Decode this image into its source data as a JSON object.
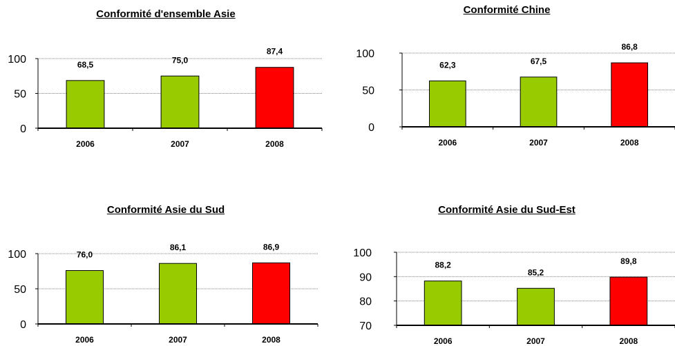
{
  "chart_data": [
    {
      "type": "bar",
      "title": "Conformité d'ensemble Asie",
      "categories": [
        "2006",
        "2007",
        "2008"
      ],
      "values": [
        68.5,
        75.0,
        87.4
      ],
      "value_labels": [
        "68,5",
        "75,0",
        "87,4"
      ],
      "colors": [
        "#99cc00",
        "#99cc00",
        "#ff0000"
      ],
      "ylim": [
        0,
        100
      ],
      "yticks": [
        0,
        50,
        100
      ],
      "grid": true
    },
    {
      "type": "bar",
      "title": "Conformité Chine",
      "categories": [
        "2006",
        "2007",
        "2008"
      ],
      "values": [
        62.3,
        67.5,
        86.8
      ],
      "value_labels": [
        "62,3",
        "67,5",
        "86,8"
      ],
      "colors": [
        "#99cc00",
        "#99cc00",
        "#ff0000"
      ],
      "ylim": [
        0,
        100
      ],
      "yticks": [
        0,
        50,
        100
      ],
      "grid": true
    },
    {
      "type": "bar",
      "title": "Conformité Asie du Sud",
      "categories": [
        "2006",
        "2007",
        "2008"
      ],
      "values": [
        76.0,
        86.1,
        86.9
      ],
      "value_labels": [
        "76,0",
        "86,1",
        "86,9"
      ],
      "colors": [
        "#99cc00",
        "#99cc00",
        "#ff0000"
      ],
      "ylim": [
        0,
        100
      ],
      "yticks": [
        0,
        50,
        100
      ],
      "grid": true
    },
    {
      "type": "bar",
      "title": "Conformité Asie du Sud-Est",
      "categories": [
        "2006",
        "2007",
        "2008"
      ],
      "values": [
        88.2,
        85.2,
        89.8
      ],
      "value_labels": [
        "88,2",
        "85,2",
        "89,8"
      ],
      "colors": [
        "#99cc00",
        "#99cc00",
        "#ff0000"
      ],
      "ylim": [
        70,
        100
      ],
      "yticks": [
        70,
        80,
        90,
        100
      ],
      "grid": true
    }
  ]
}
